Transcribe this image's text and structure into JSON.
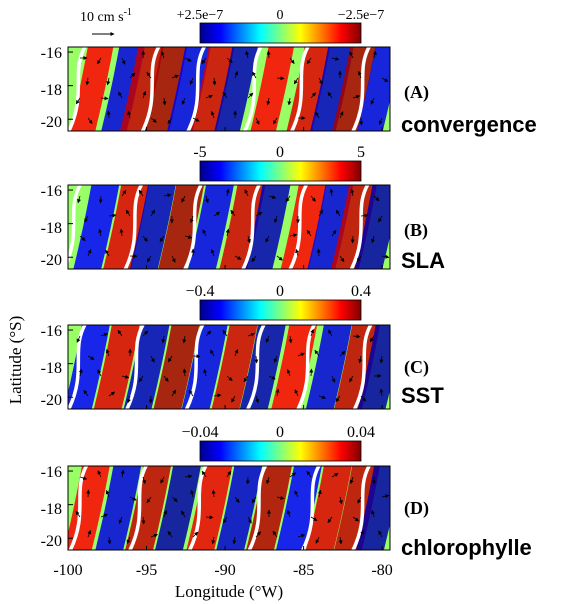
{
  "figure": {
    "ylabel": "Latitude (°S)",
    "xlabel": "Longitude (°W)",
    "x_ticks": [
      "-100",
      "-95",
      "-90",
      "-85",
      "-80"
    ],
    "vector_scale_label": "10 cm s",
    "vector_scale_exponent": "-1"
  },
  "chart_data": [
    {
      "type": "heatmap",
      "panel_label": "(A)",
      "variable": "convergence",
      "colorbar_ticks": [
        "+2.5e−7",
        "0",
        "−2.5e−7"
      ],
      "clim": [
        2.5e-07,
        -2.5e-07
      ],
      "xlim": [
        -100,
        -79.5
      ],
      "ylim": [
        -20.7,
        -15.7
      ],
      "y_ticks": [
        "-16",
        "-18",
        "-20"
      ],
      "anomaly_bands": [
        {
          "lon": -98.5,
          "sign": 1
        },
        {
          "lon": -96.5,
          "sign": -1
        },
        {
          "lon": -95.3,
          "sign": 1
        },
        {
          "lon": -93.8,
          "sign": 1
        },
        {
          "lon": -92.3,
          "sign": -1
        },
        {
          "lon": -90.8,
          "sign": 1
        },
        {
          "lon": -89.3,
          "sign": -1
        },
        {
          "lon": -87.0,
          "sign": 1
        },
        {
          "lon": -84.7,
          "sign": 1
        },
        {
          "lon": -83.2,
          "sign": -1
        },
        {
          "lon": -81.8,
          "sign": 1
        },
        {
          "lon": -80.2,
          "sign": -1
        }
      ],
      "front_lons": [
        -99.5,
        -94.8,
        -91.9,
        -88.3,
        -85.3,
        -81.4
      ]
    },
    {
      "type": "heatmap",
      "panel_label": "(B)",
      "variable": "SLA",
      "colorbar_ticks": [
        "-5",
        "0",
        "5"
      ],
      "clim": [
        -5,
        5
      ],
      "xlim": [
        -100,
        -79.5
      ],
      "ylim": [
        -20.7,
        -15.7
      ],
      "y_ticks": [
        "-16",
        "-18",
        "-20"
      ],
      "anomaly_bands": [
        {
          "lon": -98.2,
          "sign": -1
        },
        {
          "lon": -96.3,
          "sign": 1
        },
        {
          "lon": -94.6,
          "sign": -1
        },
        {
          "lon": -92.8,
          "sign": 1
        },
        {
          "lon": -90.9,
          "sign": -1
        },
        {
          "lon": -88.9,
          "sign": 1
        },
        {
          "lon": -87.3,
          "sign": -1
        },
        {
          "lon": -85.0,
          "sign": 1
        },
        {
          "lon": -83.3,
          "sign": -1
        },
        {
          "lon": -81.8,
          "sign": 1
        },
        {
          "lon": -80.3,
          "sign": -1
        }
      ],
      "front_lons": [
        -99.8,
        -95.9,
        -92.1,
        -88.4,
        -85.4,
        -81.5
      ]
    },
    {
      "type": "heatmap",
      "panel_label": "(C)",
      "variable": "SST",
      "colorbar_ticks": [
        "−0.4",
        "0",
        "0.4"
      ],
      "clim": [
        -0.4,
        0.4
      ],
      "xlim": [
        -100,
        -79.5
      ],
      "ylim": [
        -20.7,
        -15.7
      ],
      "y_ticks": [
        "-16",
        "-18",
        "-20"
      ],
      "anomaly_bands": [
        {
          "lon": -98.8,
          "sign": -1
        },
        {
          "lon": -96.9,
          "sign": 1
        },
        {
          "lon": -95.0,
          "sign": -1
        },
        {
          "lon": -93.1,
          "sign": 1
        },
        {
          "lon": -91.3,
          "sign": -1
        },
        {
          "lon": -89.4,
          "sign": 1
        },
        {
          "lon": -87.6,
          "sign": -1
        },
        {
          "lon": -85.6,
          "sign": 1
        },
        {
          "lon": -83.4,
          "sign": -1
        },
        {
          "lon": -81.6,
          "sign": 1
        },
        {
          "lon": -80.1,
          "sign": -1
        }
      ],
      "front_lons": [
        -99.5,
        -95.8,
        -92.0,
        -88.1,
        -84.9,
        -81.3
      ]
    },
    {
      "type": "heatmap",
      "panel_label": "(D)",
      "variable": "chlorophylle",
      "colorbar_ticks": [
        "−0.04",
        "0",
        "0.04"
      ],
      "clim": [
        -0.04,
        0.04
      ],
      "xlim": [
        -100,
        -79.5
      ],
      "ylim": [
        -20.7,
        -15.7
      ],
      "y_ticks": [
        "-16",
        "-18",
        "-20"
      ],
      "anomaly_bands": [
        {
          "lon": -98.8,
          "sign": 1
        },
        {
          "lon": -96.8,
          "sign": -1
        },
        {
          "lon": -94.9,
          "sign": 1
        },
        {
          "lon": -93.0,
          "sign": -1
        },
        {
          "lon": -91.0,
          "sign": 1
        },
        {
          "lon": -89.1,
          "sign": -1
        },
        {
          "lon": -87.2,
          "sign": 1
        },
        {
          "lon": -85.3,
          "sign": -1
        },
        {
          "lon": -83.4,
          "sign": 1
        },
        {
          "lon": -81.6,
          "sign": 1
        },
        {
          "lon": -80.2,
          "sign": -1
        }
      ],
      "front_lons": [
        -99.4,
        -95.6,
        -91.8,
        -88.0,
        -84.6,
        -81.4
      ]
    }
  ]
}
